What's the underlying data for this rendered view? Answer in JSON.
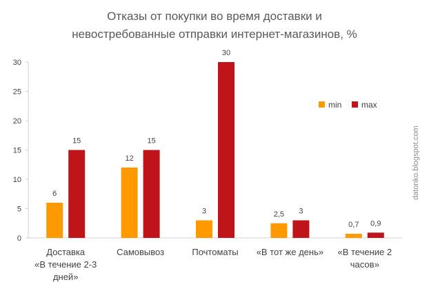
{
  "chart_data": {
    "type": "bar",
    "title_lines": [
      "Отказы от покупки во время доставки и",
      "невостребованные отправки интернет-магазинов, %"
    ],
    "categories": [
      [
        "Доставка",
        "«В течение 2-3",
        "дней»"
      ],
      [
        "Самовывоз"
      ],
      [
        "Почтоматы"
      ],
      [
        "«В тот же день»"
      ],
      [
        "«В течение 2",
        "часов»"
      ]
    ],
    "series": [
      {
        "name": "min",
        "color": "#ff9900",
        "values": [
          6,
          12,
          3,
          2.5,
          0.7
        ],
        "labels": [
          "6",
          "12",
          "3",
          "2,5",
          "0,7"
        ]
      },
      {
        "name": "max",
        "color": "#c0141b",
        "values": [
          15,
          15,
          30,
          3,
          0.9
        ],
        "labels": [
          "15",
          "15",
          "30",
          "3",
          "0,9"
        ]
      }
    ],
    "ylim": [
      0,
      30
    ],
    "yticks": [
      0,
      5,
      10,
      15,
      20,
      25,
      30
    ],
    "legend_position": "top-right",
    "grid": false
  },
  "watermark": "datonko.blogspot.com"
}
